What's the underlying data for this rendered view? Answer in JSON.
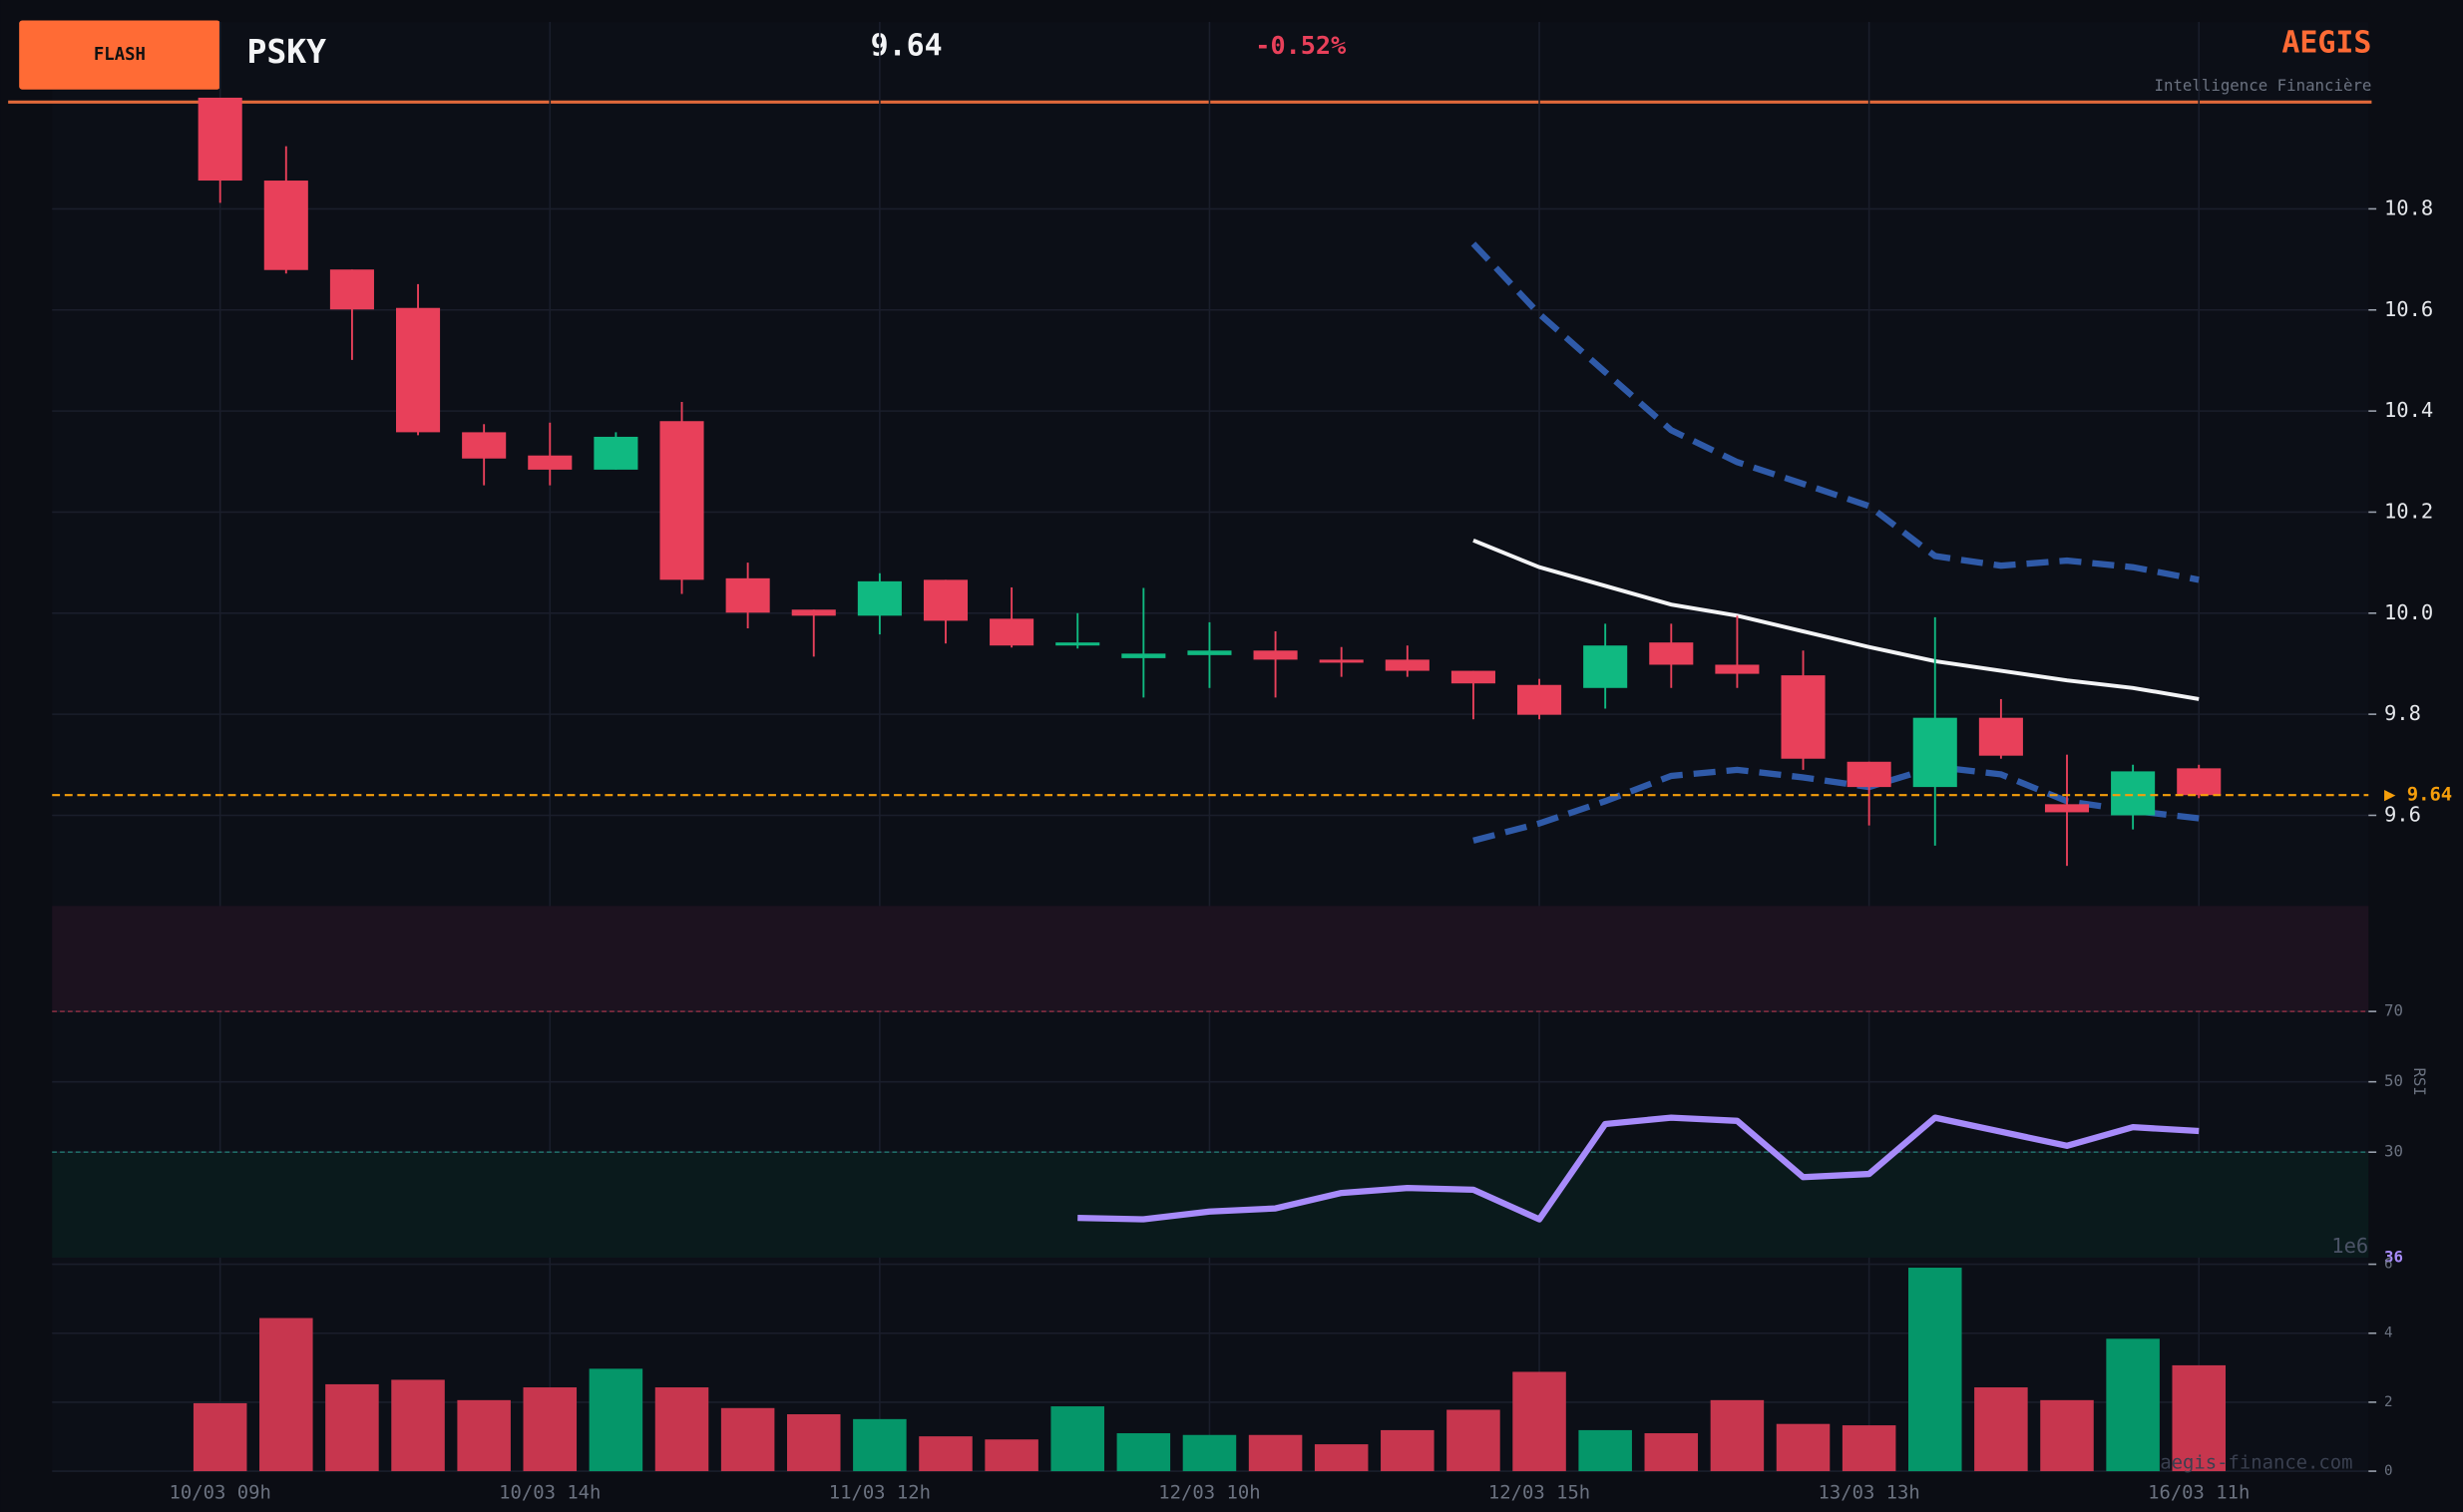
{
  "header": {
    "badge": "FLASH",
    "ticker": "PSKY",
    "price": "9.64",
    "change": "-0.52%",
    "brand": "AEGIS",
    "tagline": "Intelligence Financière",
    "watermark": "aegis-finance.com"
  },
  "chart_data": [
    {
      "type": "candlestick",
      "categories": [
        "10/03 09h",
        null,
        null,
        null,
        null,
        "10/03 14h",
        null,
        null,
        null,
        null,
        "11/03 12h",
        null,
        null,
        null,
        null,
        "12/03 10h",
        null,
        null,
        null,
        null,
        "12/03 15h",
        null,
        null,
        null,
        null,
        "13/03 13h",
        null,
        null,
        null,
        null,
        "16/03 11h"
      ],
      "open": [
        11.02,
        10.856,
        10.68,
        10.604,
        10.358,
        10.312,
        10.284,
        10.38,
        10.069,
        10.007,
        9.995,
        10.066,
        9.989,
        9.936,
        9.911,
        9.917,
        9.926,
        9.908,
        9.908,
        9.886,
        9.858,
        9.852,
        9.942,
        9.898,
        9.877,
        9.706,
        9.656,
        9.793,
        9.622,
        9.6,
        9.693
      ],
      "high": [
        11.02,
        10.924,
        10.68,
        10.651,
        10.374,
        10.377,
        10.358,
        10.418,
        10.1,
        10.007,
        10.079,
        10.066,
        10.051,
        10.0,
        10.05,
        9.982,
        9.964,
        9.933,
        9.936,
        9.886,
        9.87,
        9.979,
        9.979,
        9.995,
        9.926,
        9.706,
        9.992,
        9.83,
        9.72,
        9.7,
        9.7
      ],
      "low": [
        10.812,
        10.672,
        10.501,
        10.352,
        10.253,
        10.253,
        10.284,
        10.038,
        9.97,
        9.914,
        9.958,
        9.94,
        9.932,
        9.93,
        9.833,
        9.852,
        9.833,
        9.874,
        9.874,
        9.79,
        9.79,
        9.811,
        9.852,
        9.852,
        9.69,
        9.58,
        9.54,
        9.712,
        9.5,
        9.572,
        9.634
      ],
      "close": [
        10.856,
        10.679,
        10.601,
        10.358,
        10.306,
        10.284,
        10.349,
        10.066,
        10.001,
        9.995,
        10.063,
        9.985,
        9.936,
        9.942,
        9.92,
        9.926,
        9.908,
        9.902,
        9.886,
        9.861,
        9.799,
        9.936,
        9.898,
        9.88,
        9.712,
        9.656,
        9.793,
        9.718,
        9.606,
        9.687,
        9.64
      ],
      "up_color": "#10b981",
      "down_color": "#e8405a",
      "bands": [
        {
          "color": "#2f5aa8",
          "dashed": true,
          "values": [
            null,
            null,
            null,
            null,
            null,
            null,
            null,
            null,
            null,
            null,
            null,
            null,
            null,
            null,
            null,
            null,
            null,
            null,
            null,
            10.731,
            10.592,
            10.477,
            10.362,
            10.299,
            10.256,
            10.212,
            10.113,
            10.094,
            10.104,
            10.091,
            10.066
          ]
        },
        {
          "color": "#f3f4f6",
          "dashed": false,
          "values": [
            null,
            null,
            null,
            null,
            null,
            null,
            null,
            null,
            null,
            null,
            null,
            null,
            null,
            null,
            null,
            null,
            null,
            null,
            null,
            10.144,
            10.091,
            10.054,
            10.017,
            9.995,
            9.964,
            9.933,
            9.905,
            9.886,
            9.867,
            9.852,
            9.83
          ]
        },
        {
          "color": "#2f5aa8",
          "dashed": true,
          "values": [
            null,
            null,
            null,
            null,
            null,
            null,
            null,
            null,
            null,
            null,
            null,
            null,
            null,
            null,
            null,
            null,
            null,
            null,
            null,
            9.55,
            9.584,
            9.628,
            9.678,
            9.69,
            9.675,
            9.656,
            9.696,
            9.681,
            9.628,
            9.609,
            9.594
          ]
        }
      ],
      "last_price": 9.64,
      "last_label": "▶ 9.64",
      "last_color": "#f59e0b",
      "ylim": [
        9.43,
        11.03
      ],
      "yticks": [
        9.6,
        9.8,
        {
          "value": 10,
          "label": "10.0"
        },
        10.2,
        10.4,
        10.6,
        10.8
      ],
      "grid": true
    },
    {
      "type": "line",
      "ylabel": "RSI",
      "series": [
        {
          "color": "#a78bfa",
          "values": [
            null,
            null,
            null,
            null,
            null,
            null,
            null,
            null,
            null,
            null,
            null,
            null,
            null,
            11.3,
            10.9,
            13.1,
            14,
            18.4,
            19.8,
            19.3,
            10.9,
            38,
            39.8,
            38.9,
            22.9,
            23.8,
            39.8,
            35.8,
            31.8,
            37.1,
            36
          ]
        }
      ],
      "overbought": 70,
      "oversold": 30,
      "ylim": [
        0,
        100
      ],
      "yticks": [
        30,
        50,
        70
      ],
      "grid": true
    },
    {
      "type": "bar",
      "offset_label": "1e6",
      "values": [
        1.97,
        4.44,
        2.52,
        2.65,
        2.06,
        2.43,
        2.97,
        2.43,
        1.83,
        1.65,
        1.51,
        1.01,
        0.92,
        1.88,
        1.1,
        1.05,
        1.05,
        0.78,
        1.19,
        1.78,
        2.88,
        1.19,
        1.1,
        2.06,
        1.37,
        1.33,
        5.9,
        2.43,
        2.06,
        3.84,
        3.07
      ],
      "up_color": "#059669",
      "down_color": "#c7364e",
      "ylim": [
        0,
        6.1
      ],
      "yticks": [
        0,
        2,
        4,
        6
      ],
      "grid": true
    }
  ]
}
